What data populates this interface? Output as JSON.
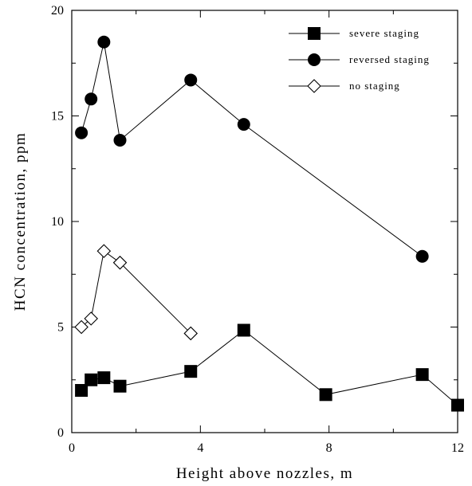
{
  "chart_data": {
    "type": "line",
    "xlabel": "Height above nozzles, m",
    "ylabel": "HCN concentration, ppm",
    "xlim": [
      0,
      12
    ],
    "ylim": [
      0,
      20
    ],
    "xticks": [
      0,
      4,
      8,
      12
    ],
    "yticks": [
      0,
      5,
      10,
      15,
      20
    ],
    "legend_position": "top-right",
    "grid": false,
    "series": [
      {
        "name": "severe staging",
        "marker": "square-filled",
        "color": "#000000",
        "x": [
          0.3,
          0.6,
          1.0,
          1.5,
          3.7,
          5.35,
          7.9,
          10.9,
          12.0
        ],
        "y": [
          2.0,
          2.5,
          2.6,
          2.2,
          2.9,
          4.85,
          1.8,
          2.75,
          1.3
        ]
      },
      {
        "name": "reversed staging",
        "marker": "circle-filled",
        "color": "#000000",
        "x": [
          0.3,
          0.6,
          1.0,
          1.5,
          3.7,
          5.35,
          10.9
        ],
        "y": [
          14.2,
          15.8,
          18.5,
          13.85,
          16.7,
          14.6,
          8.35
        ]
      },
      {
        "name": "no staging",
        "marker": "diamond-open",
        "color": "#000000",
        "x": [
          0.3,
          0.6,
          1.0,
          1.5,
          3.7
        ],
        "y": [
          5.0,
          5.4,
          8.6,
          8.05,
          4.7
        ]
      }
    ]
  }
}
